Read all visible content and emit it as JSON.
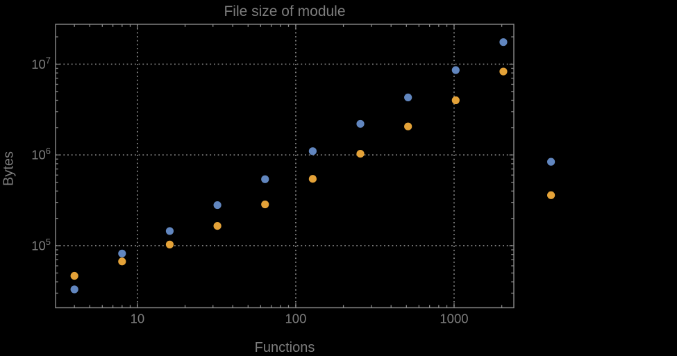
{
  "colors": {
    "background": "#000000",
    "frame": "#8a8a8a",
    "grid": "#8a8a8a",
    "text": "#7d7d7d",
    "series_blue": "#6186bf",
    "series_orange": "#e4a238"
  },
  "chart_data": {
    "type": "scatter",
    "title": "File size of module",
    "xlabel": "Functions",
    "ylabel": "Bytes",
    "x_scale": "log",
    "y_scale": "log",
    "x_range": [
      3.04,
      2384
    ],
    "y_range": [
      20700,
      27500000
    ],
    "grid": "dotted",
    "legend": "none",
    "x_ticks": [
      {
        "value": 10,
        "label": "10"
      },
      {
        "value": 100,
        "label": "100"
      },
      {
        "value": 1000,
        "label": "1000"
      }
    ],
    "y_ticks": [
      {
        "value": 100000,
        "base": "10",
        "exp": "5"
      },
      {
        "value": 1000000,
        "base": "10",
        "exp": "6"
      },
      {
        "value": 10000000,
        "base": "10",
        "exp": "7"
      }
    ],
    "series": [
      {
        "name": "blue",
        "color_key": "series_blue",
        "points": [
          [
            4,
            33000
          ],
          [
            8,
            82000
          ],
          [
            16,
            145000
          ],
          [
            32,
            280000
          ],
          [
            64,
            540000
          ],
          [
            128,
            1100000
          ],
          [
            256,
            2200000
          ],
          [
            512,
            4300000
          ],
          [
            1024,
            8600000
          ],
          [
            2048,
            17500000
          ],
          [
            4096,
            840000
          ]
        ]
      },
      {
        "name": "orange",
        "color_key": "series_orange",
        "points": [
          [
            4,
            46500
          ],
          [
            8,
            67000
          ],
          [
            16,
            103000
          ],
          [
            32,
            165000
          ],
          [
            64,
            285000
          ],
          [
            128,
            545000
          ],
          [
            256,
            1030000
          ],
          [
            512,
            2060000
          ],
          [
            1024,
            4000000
          ],
          [
            2048,
            8300000
          ],
          [
            4096,
            360000
          ]
        ]
      }
    ]
  }
}
